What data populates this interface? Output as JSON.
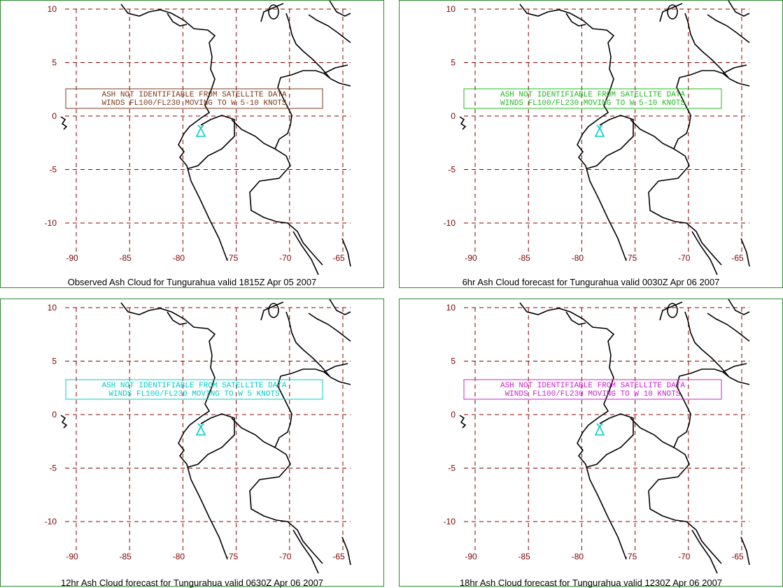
{
  "axes": {
    "lat_ticks": [
      "10",
      "5",
      "0",
      "-5",
      "-10"
    ],
    "lon_ticks": [
      "-90",
      "-85",
      "-80",
      "-75",
      "-70",
      "-65"
    ]
  },
  "colors": {
    "grid": "#8b0000",
    "tick_labels": "#800000",
    "coastline": "#000000",
    "volcano": "#00cccc",
    "frame": "#2e8b2e"
  },
  "volcano_icon": "volcano-icon",
  "panels": [
    {
      "caption": "Observed Ash Cloud for Tungurahua valid 1815Z Apr 05 2007",
      "line1": "ASH NOT IDENTIFIABLE FROM SATELLITE DATA",
      "line2": "WINDS FL100/FL230 MOVING TO W 5-10 KNOTS",
      "text_color": "#7a3b1e"
    },
    {
      "caption": "6hr Ash Cloud forecast for Tungurahua valid 0030Z Apr 06 2007",
      "line1": "ASH NOT IDENTIFIABLE FROM SATELLITE DATA",
      "line2": "WINDS FL100/FL230 MOVING TO W 5-10 KNOTS",
      "text_color": "#22bb22"
    },
    {
      "caption": "12hr Ash Cloud forecast for Tungurahua valid 0630Z Apr 06 2007",
      "line1": "ASH NOT IDENTIFIABLE FROM SATELLITE DATA",
      "line2": "WINDS FL100/FL230 MOVING TO W 5 KNOTS",
      "text_color": "#00cccc"
    },
    {
      "caption": "18hr Ash Cloud forecast for Tungurahua valid 1230Z Apr 06 2007",
      "line1": "ASH NOT IDENTIFIABLE FROM SATELLITE DATA",
      "line2": "WINDS FL100/FL230 MOVING TO W 10 KNOTS",
      "text_color": "#cc22cc"
    }
  ]
}
